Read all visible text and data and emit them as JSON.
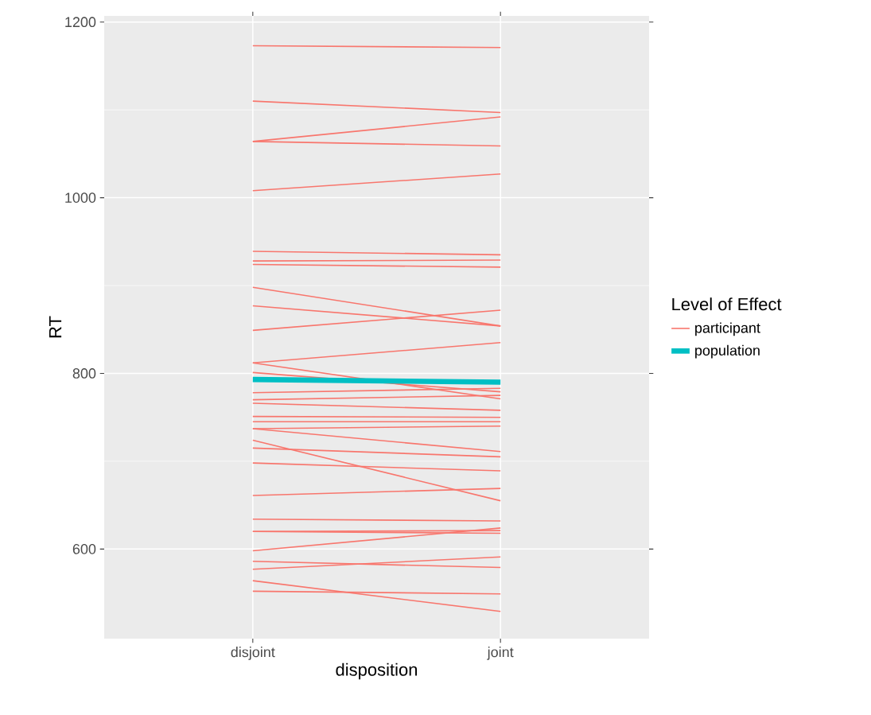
{
  "chart_data": {
    "type": "line",
    "xlabel": "disposition",
    "ylabel": "RT",
    "legend_title": "Level of Effect",
    "categories": [
      "disjoint",
      "joint"
    ],
    "ylim": [
      498,
      1207
    ],
    "yticks": [
      600,
      800,
      1000,
      1200
    ],
    "grid": true,
    "legend": "right",
    "series": [
      {
        "name": "participant",
        "color": "#f8766d",
        "values": [
          1173,
          1171
        ]
      },
      {
        "color": "#f8766d",
        "values": [
          1110,
          1097
        ]
      },
      {
        "color": "#f8766d",
        "values": [
          1064,
          1092
        ]
      },
      {
        "color": "#f8766d",
        "values": [
          1064,
          1059
        ]
      },
      {
        "color": "#f8766d",
        "values": [
          1008,
          1027
        ]
      },
      {
        "color": "#f8766d",
        "values": [
          939,
          935
        ]
      },
      {
        "color": "#f8766d",
        "values": [
          928,
          929
        ]
      },
      {
        "color": "#f8766d",
        "values": [
          924,
          921
        ]
      },
      {
        "color": "#f8766d",
        "values": [
          898,
          854
        ]
      },
      {
        "color": "#f8766d",
        "values": [
          877,
          854
        ]
      },
      {
        "color": "#f8766d",
        "values": [
          849,
          872
        ]
      },
      {
        "color": "#f8766d",
        "values": [
          812,
          835
        ]
      },
      {
        "color": "#f8766d",
        "values": [
          812,
          771
        ]
      },
      {
        "color": "#f8766d",
        "values": [
          801,
          779
        ]
      },
      {
        "color": "#f8766d",
        "values": [
          778,
          783
        ]
      },
      {
        "color": "#f8766d",
        "values": [
          770,
          775
        ]
      },
      {
        "color": "#f8766d",
        "values": [
          766,
          758
        ]
      },
      {
        "color": "#f8766d",
        "values": [
          751,
          750
        ]
      },
      {
        "color": "#f8766d",
        "values": [
          745,
          745
        ]
      },
      {
        "color": "#f8766d",
        "values": [
          737,
          740
        ]
      },
      {
        "color": "#f8766d",
        "values": [
          737,
          711
        ]
      },
      {
        "color": "#f8766d",
        "values": [
          724,
          655
        ]
      },
      {
        "color": "#f8766d",
        "values": [
          715,
          705
        ]
      },
      {
        "color": "#f8766d",
        "values": [
          698,
          689
        ]
      },
      {
        "color": "#f8766d",
        "values": [
          661,
          669
        ]
      },
      {
        "color": "#f8766d",
        "values": [
          634,
          632
        ]
      },
      {
        "color": "#f8766d",
        "values": [
          620,
          621
        ]
      },
      {
        "color": "#f8766d",
        "values": [
          620,
          618
        ]
      },
      {
        "color": "#f8766d",
        "values": [
          598,
          624
        ]
      },
      {
        "color": "#f8766d",
        "values": [
          586,
          579
        ]
      },
      {
        "color": "#f8766d",
        "values": [
          577,
          591
        ]
      },
      {
        "color": "#f8766d",
        "values": [
          564,
          529
        ]
      },
      {
        "color": "#f8766d",
        "values": [
          552,
          549
        ]
      },
      {
        "name": "population",
        "color": "#00bfc4",
        "values": [
          793,
          790
        ]
      }
    ]
  }
}
